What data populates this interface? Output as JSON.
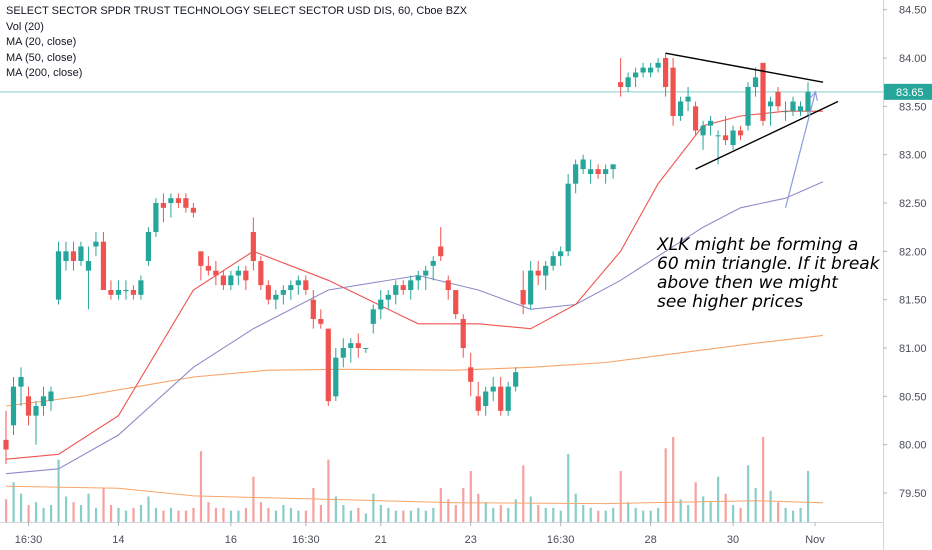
{
  "legend": {
    "title": "SELECT SECTOR SPDR TRUST TECHNOLOGY SELECT SECTOR USD DIS, 60, Cboe BZX",
    "lines": [
      "Vol (20)",
      "MA (20, close)",
      "MA (50, close)",
      "MA (200, close)"
    ]
  },
  "last_price_label": "83.65",
  "annotation": {
    "lines": [
      "XLK might be forming a",
      "60 min triangle. If it break",
      "above then we might",
      "see higher prices"
    ]
  },
  "colors": {
    "up": "#26a69a",
    "down": "#ef5350",
    "ma20": "#ef5350",
    "ma50": "#8c8cc8",
    "ma200": "#f7a56b",
    "price_line": "#26a69a",
    "axis_text": "#4a4e59"
  },
  "chart_data": {
    "type": "candlestick",
    "y_range": [
      79.2,
      84.6
    ],
    "y_ticks": [
      "84.50",
      "84.00",
      "83.50",
      "83.00",
      "82.50",
      "82.00",
      "81.50",
      "81.00",
      "80.50",
      "80.00",
      "79.50"
    ],
    "x_ticks": [
      "16:30",
      "14",
      "16",
      "16:30",
      "21",
      "23",
      "16:30",
      "28",
      "30",
      "Nov"
    ],
    "last_price": 83.65,
    "candles": [
      [
        80.05,
        80.35,
        79.8,
        79.95
      ],
      [
        80.2,
        80.7,
        80.1,
        80.6
      ],
      [
        80.6,
        80.8,
        80.4,
        80.7
      ],
      [
        80.5,
        80.6,
        80.2,
        80.3
      ],
      [
        80.3,
        80.45,
        80.0,
        80.4
      ],
      [
        80.4,
        80.6,
        80.3,
        80.5
      ],
      [
        80.45,
        80.6,
        80.35,
        80.55
      ],
      [
        81.5,
        82.1,
        81.45,
        82.0
      ],
      [
        81.9,
        82.1,
        81.8,
        82.0
      ],
      [
        82.0,
        82.1,
        81.8,
        81.9
      ],
      [
        81.9,
        82.1,
        81.85,
        82.05
      ],
      [
        81.8,
        82.05,
        81.4,
        81.9
      ],
      [
        82.05,
        82.2,
        81.95,
        82.1
      ],
      [
        82.1,
        82.2,
        81.6,
        81.6
      ],
      [
        81.6,
        81.7,
        81.5,
        81.55
      ],
      [
        81.55,
        81.7,
        81.5,
        81.6
      ],
      [
        81.6,
        81.7,
        81.5,
        81.6
      ],
      [
        81.6,
        81.65,
        81.5,
        81.55
      ],
      [
        81.55,
        81.75,
        81.5,
        81.7
      ],
      [
        81.9,
        82.25,
        81.85,
        82.2
      ],
      [
        82.2,
        82.55,
        82.15,
        82.5
      ],
      [
        82.5,
        82.6,
        82.3,
        82.45
      ],
      [
        82.5,
        82.6,
        82.35,
        82.55
      ],
      [
        82.55,
        82.6,
        82.45,
        82.5
      ],
      [
        82.55,
        82.6,
        82.4,
        82.45
      ],
      [
        82.45,
        82.5,
        82.35,
        82.4
      ],
      [
        82.0,
        82.0,
        81.7,
        81.85
      ],
      [
        81.85,
        81.95,
        81.75,
        81.8
      ],
      [
        81.8,
        81.9,
        81.65,
        81.75
      ],
      [
        81.75,
        81.8,
        81.6,
        81.65
      ],
      [
        81.65,
        81.8,
        81.6,
        81.75
      ],
      [
        81.75,
        81.85,
        81.65,
        81.8
      ],
      [
        81.8,
        81.85,
        81.6,
        81.7
      ],
      [
        82.2,
        82.35,
        81.8,
        81.9
      ],
      [
        81.9,
        81.95,
        81.6,
        81.65
      ],
      [
        81.65,
        81.7,
        81.45,
        81.5
      ],
      [
        81.5,
        81.6,
        81.4,
        81.55
      ],
      [
        81.55,
        81.65,
        81.45,
        81.6
      ],
      [
        81.6,
        81.7,
        81.5,
        81.65
      ],
      [
        81.65,
        81.75,
        81.55,
        81.7
      ],
      [
        81.7,
        81.75,
        81.55,
        81.6
      ],
      [
        81.5,
        81.6,
        81.2,
        81.3
      ],
      [
        81.3,
        81.4,
        81.2,
        81.25
      ],
      [
        81.2,
        81.2,
        80.4,
        80.45
      ],
      [
        80.5,
        81.0,
        80.45,
        80.9
      ],
      [
        80.9,
        81.1,
        80.8,
        81.0
      ],
      [
        81.0,
        81.1,
        80.85,
        81.05
      ],
      [
        81.05,
        81.15,
        80.9,
        81.0
      ],
      [
        81.0,
        81.0,
        80.95,
        81.0
      ],
      [
        81.25,
        81.45,
        81.15,
        81.4
      ],
      [
        81.4,
        81.6,
        81.3,
        81.5
      ],
      [
        81.5,
        81.6,
        81.4,
        81.55
      ],
      [
        81.55,
        81.7,
        81.45,
        81.65
      ],
      [
        81.65,
        81.7,
        81.55,
        81.6
      ],
      [
        81.6,
        81.75,
        81.5,
        81.7
      ],
      [
        81.7,
        81.8,
        81.6,
        81.75
      ],
      [
        81.75,
        81.85,
        81.6,
        81.8
      ],
      [
        81.85,
        81.95,
        81.7,
        81.9
      ],
      [
        82.05,
        82.25,
        81.9,
        81.95
      ],
      [
        81.7,
        81.75,
        81.5,
        81.6
      ],
      [
        81.6,
        81.6,
        81.3,
        81.35
      ],
      [
        81.3,
        81.35,
        80.9,
        81.0
      ],
      [
        80.8,
        80.95,
        80.5,
        80.65
      ],
      [
        80.5,
        80.65,
        80.3,
        80.35
      ],
      [
        80.4,
        80.6,
        80.3,
        80.55
      ],
      [
        80.55,
        80.7,
        80.45,
        80.6
      ],
      [
        80.6,
        80.7,
        80.3,
        80.35
      ],
      [
        80.35,
        80.65,
        80.3,
        80.6
      ],
      [
        80.6,
        80.8,
        80.55,
        80.75
      ],
      [
        81.6,
        81.8,
        81.35,
        81.45
      ],
      [
        81.45,
        81.9,
        81.4,
        81.8
      ],
      [
        81.8,
        81.9,
        81.65,
        81.75
      ],
      [
        81.75,
        81.9,
        81.6,
        81.85
      ],
      [
        81.85,
        82.0,
        81.8,
        81.95
      ],
      [
        81.95,
        82.05,
        81.85,
        82.0
      ],
      [
        82.0,
        82.8,
        81.95,
        82.7
      ],
      [
        82.7,
        82.95,
        82.6,
        82.9
      ],
      [
        82.85,
        83.0,
        82.8,
        82.95
      ],
      [
        82.8,
        82.95,
        82.7,
        82.85
      ],
      [
        82.85,
        82.9,
        82.75,
        82.8
      ],
      [
        82.8,
        82.9,
        82.7,
        82.85
      ],
      [
        82.85,
        82.9,
        82.75,
        82.9
      ],
      [
        83.75,
        84.0,
        83.6,
        83.7
      ],
      [
        83.7,
        83.85,
        83.65,
        83.8
      ],
      [
        83.8,
        83.9,
        83.7,
        83.85
      ],
      [
        83.85,
        83.95,
        83.8,
        83.9
      ],
      [
        83.85,
        83.95,
        83.8,
        83.9
      ],
      [
        83.9,
        84.0,
        83.85,
        83.95
      ],
      [
        84.0,
        84.05,
        83.6,
        83.7
      ],
      [
        83.9,
        84.0,
        83.3,
        83.4
      ],
      [
        83.4,
        83.6,
        83.35,
        83.55
      ],
      [
        83.55,
        83.7,
        83.45,
        83.6
      ],
      [
        83.5,
        83.55,
        83.2,
        83.25
      ],
      [
        83.2,
        83.35,
        83.05,
        83.3
      ],
      [
        83.3,
        83.4,
        83.2,
        83.35
      ],
      [
        83.2,
        83.25,
        82.9,
        83.2
      ],
      [
        83.2,
        83.4,
        83.1,
        83.15
      ],
      [
        83.1,
        83.3,
        83.05,
        83.25
      ],
      [
        83.25,
        83.3,
        83.15,
        83.2
      ],
      [
        83.3,
        83.75,
        83.25,
        83.7
      ],
      [
        83.7,
        83.9,
        83.6,
        83.8
      ],
      [
        83.95,
        83.9,
        83.3,
        83.35
      ],
      [
        83.5,
        83.6,
        83.3,
        83.55
      ],
      [
        83.65,
        83.7,
        83.45,
        83.5
      ],
      [
        83.45,
        83.55,
        83.35,
        83.45
      ],
      [
        83.45,
        83.6,
        83.4,
        83.55
      ],
      [
        83.45,
        83.55,
        83.4,
        83.5
      ],
      [
        83.45,
        83.75,
        83.4,
        83.65
      ]
    ],
    "volume": [
      8,
      14,
      10,
      6,
      7,
      5,
      6,
      22,
      9,
      7,
      6,
      10,
      5,
      12,
      6,
      5,
      4,
      5,
      6,
      9,
      5,
      4,
      5,
      4,
      4,
      5,
      25,
      7,
      5,
      5,
      4,
      4,
      5,
      16,
      7,
      5,
      4,
      6,
      5,
      4,
      4,
      12,
      6,
      22,
      9,
      6,
      4,
      5,
      3,
      10,
      6,
      5,
      4,
      4,
      4,
      5,
      4,
      5,
      12,
      8,
      6,
      12,
      18,
      10,
      7,
      5,
      6,
      5,
      8,
      20,
      9,
      6,
      5,
      5,
      4,
      24,
      10,
      6,
      5,
      4,
      4,
      5,
      18,
      7,
      5,
      4,
      4,
      5,
      26,
      30,
      8,
      6,
      14,
      9,
      7,
      16,
      10,
      6,
      5,
      20,
      12,
      30,
      11,
      7,
      5,
      4,
      5,
      18
    ],
    "ma20": [
      [
        0,
        79.85
      ],
      [
        7,
        79.9
      ],
      [
        15,
        80.3
      ],
      [
        25,
        81.6
      ],
      [
        33,
        82.0
      ],
      [
        43,
        81.7
      ],
      [
        55,
        81.25
      ],
      [
        63,
        81.25
      ],
      [
        70,
        81.2
      ],
      [
        76,
        81.45
      ],
      [
        82,
        82.0
      ],
      [
        87,
        82.7
      ],
      [
        93,
        83.3
      ],
      [
        98,
        83.4
      ],
      [
        104,
        83.45
      ],
      [
        109,
        83.45
      ]
    ],
    "ma50": [
      [
        0,
        79.7
      ],
      [
        7,
        79.75
      ],
      [
        15,
        80.1
      ],
      [
        25,
        80.8
      ],
      [
        33,
        81.2
      ],
      [
        43,
        81.6
      ],
      [
        55,
        81.75
      ],
      [
        63,
        81.6
      ],
      [
        70,
        81.4
      ],
      [
        76,
        81.45
      ],
      [
        82,
        81.7
      ],
      [
        87,
        81.95
      ],
      [
        93,
        82.25
      ],
      [
        98,
        82.45
      ],
      [
        104,
        82.55
      ],
      [
        109,
        82.72
      ]
    ],
    "ma200": [
      [
        0,
        80.4
      ],
      [
        10,
        80.5
      ],
      [
        25,
        80.7
      ],
      [
        35,
        80.77
      ],
      [
        45,
        80.78
      ],
      [
        60,
        80.77
      ],
      [
        70,
        80.8
      ],
      [
        80,
        80.85
      ],
      [
        90,
        80.95
      ],
      [
        100,
        81.05
      ],
      [
        109,
        81.13
      ]
    ],
    "vol_ma": [
      [
        0,
        79.57
      ],
      [
        15,
        79.55
      ],
      [
        25,
        79.47
      ],
      [
        40,
        79.44
      ],
      [
        60,
        79.4
      ],
      [
        80,
        79.39
      ],
      [
        100,
        79.42
      ],
      [
        109,
        79.4
      ]
    ],
    "trendlines": [
      [
        [
          88,
          84.05
        ],
        [
          109,
          83.75
        ]
      ],
      [
        [
          92,
          82.85
        ],
        [
          111,
          83.55
        ]
      ]
    ],
    "arrow": [
      [
        104,
        82.45
      ],
      [
        108,
        83.65
      ]
    ]
  }
}
